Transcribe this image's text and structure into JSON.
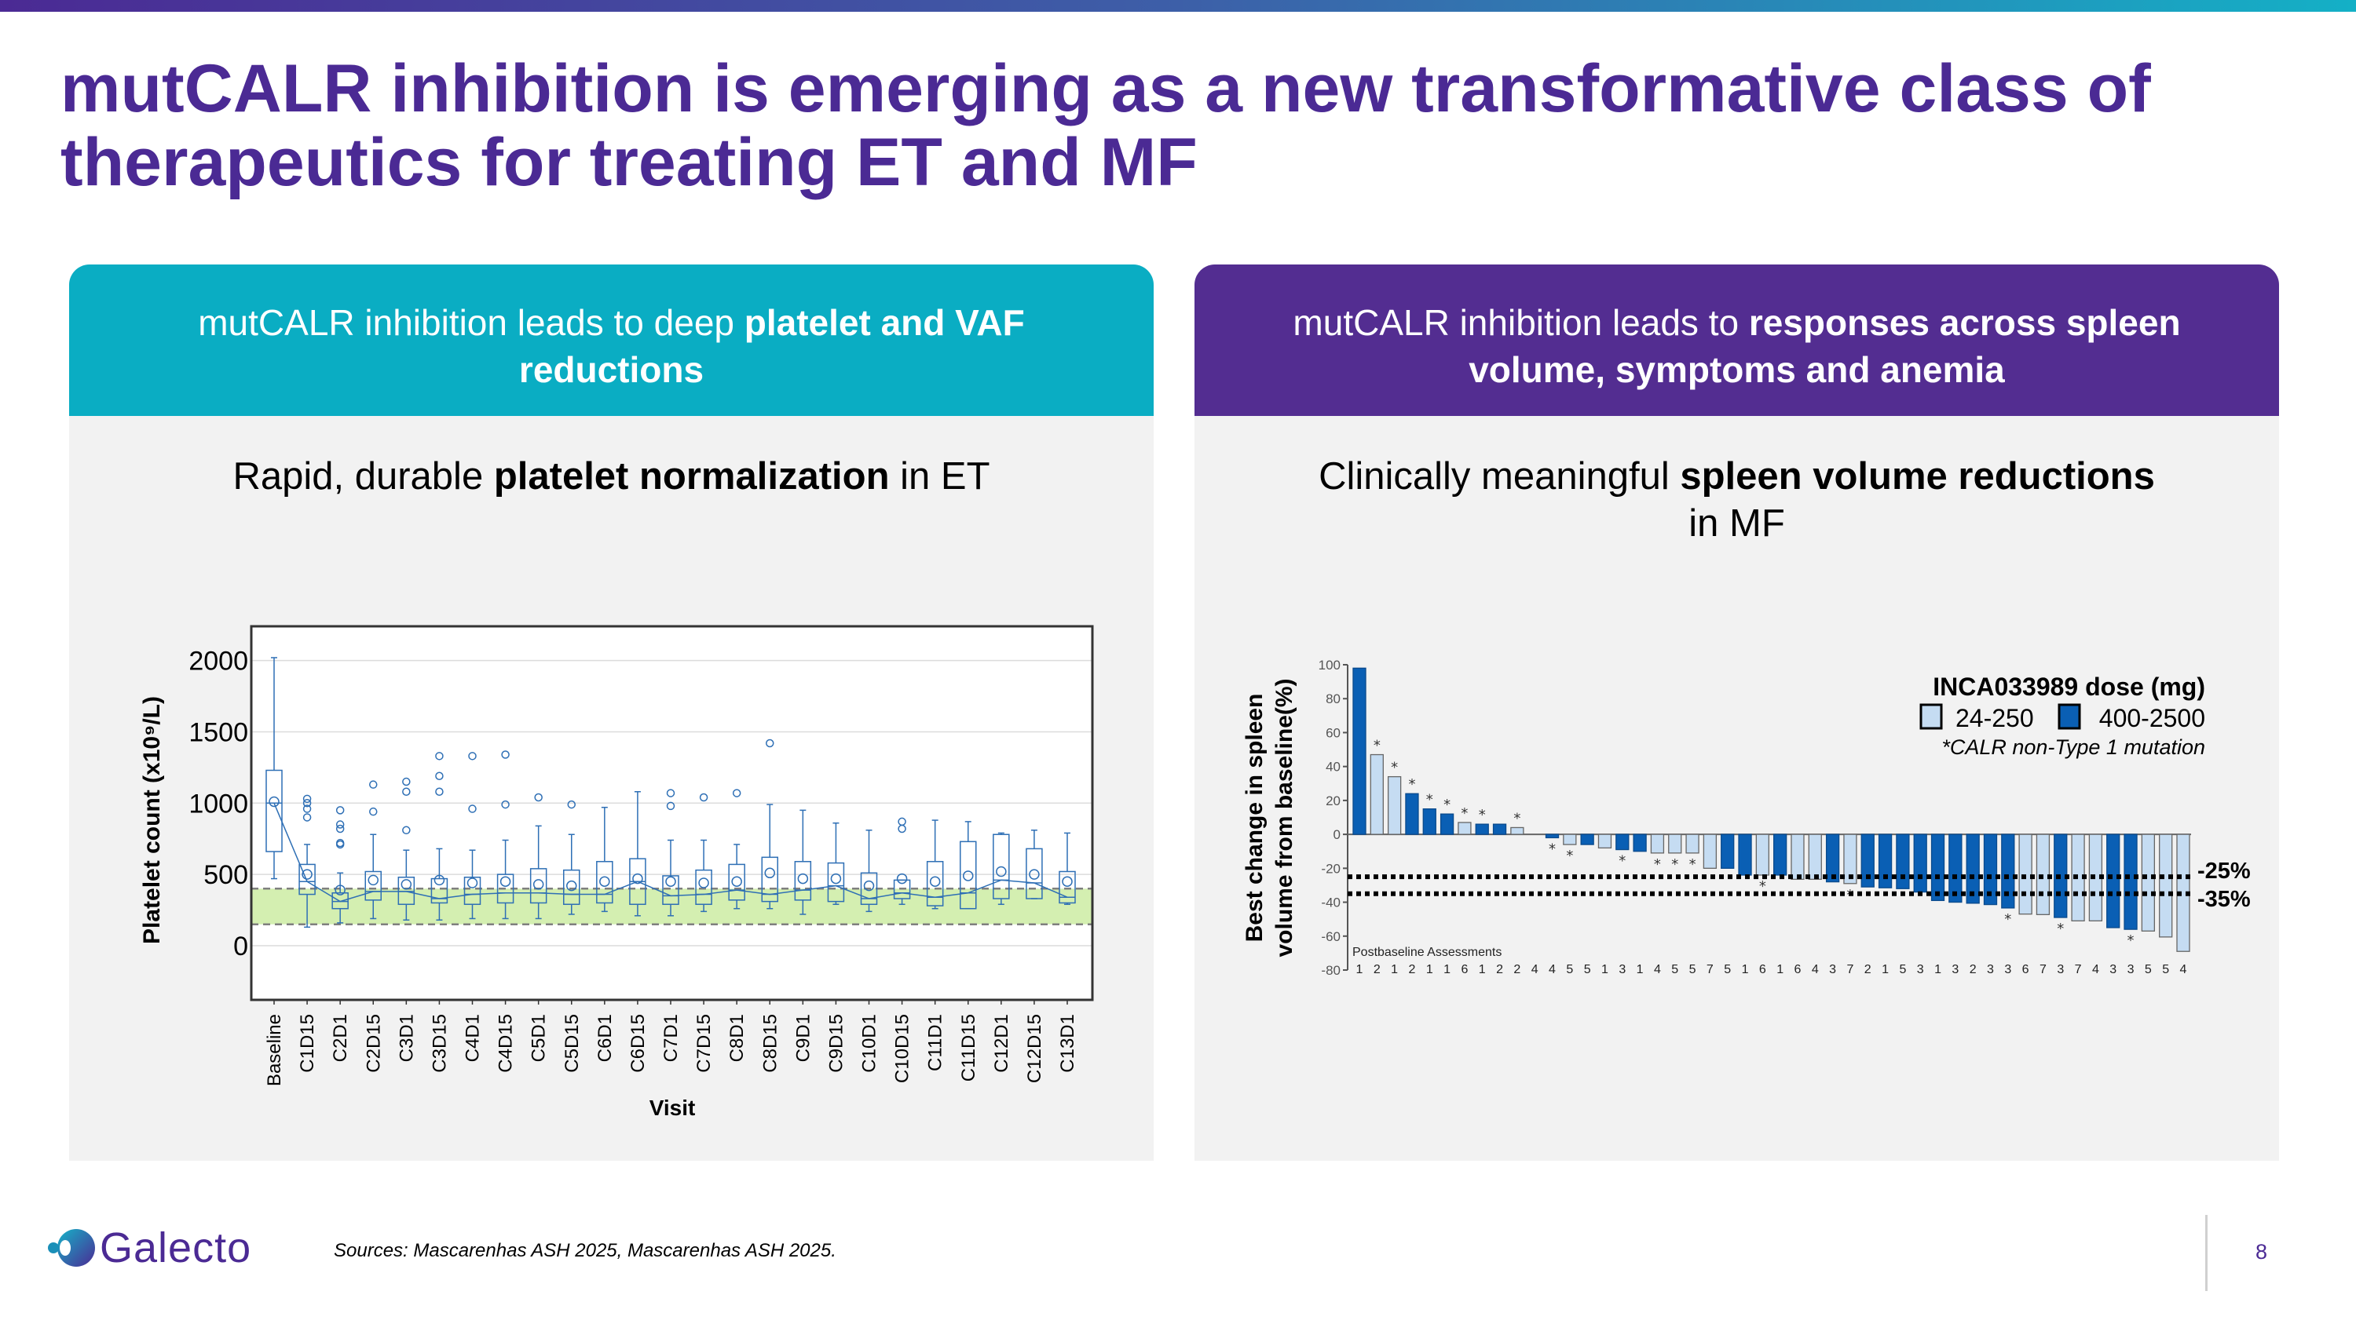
{
  "title": {
    "line1": "mutCALR inhibition is emerging as a new transformative class of",
    "line2": "therapeutics for treating ET and MF"
  },
  "left_panel": {
    "header": {
      "line1_normal": "mutCALR inhibition leads to deep ",
      "line1_bold": "platelet and VAF",
      "line2_bold": "reductions"
    },
    "subtitle": {
      "normal1": "Rapid, durable ",
      "bold": "platelet normalization",
      "normal2": " in ET"
    }
  },
  "right_panel": {
    "header": {
      "line1_normal": "mutCALR inhibition leads to ",
      "line1_bold": "responses across spleen",
      "line2_bold": "volume, symptoms and anemia"
    },
    "subtitle": {
      "normal1": "Clinically meaningful ",
      "bold": "spleen volume reductions",
      "line2": "in MF"
    }
  },
  "colors": {
    "brand_purple": "#4b2a94",
    "left_header": "#0aadc3",
    "right_header": "#532d91",
    "box_blue": "#2e6fb5",
    "normal_range_fill": "#d4efb1",
    "dose_low": "#c5dcf2",
    "dose_high": "#0a5fb4"
  },
  "chart_data": [
    {
      "type": "box",
      "title": "",
      "xlabel": "Visit",
      "ylabel": "Platelet count (x10⁹/L)",
      "ylim": [
        -380,
        2240
      ],
      "yticks": [
        0,
        500,
        1000,
        1500,
        2000
      ],
      "grid": true,
      "reference_band": [
        150,
        400
      ],
      "categories": [
        "Baseline",
        "C1D15",
        "C2D1",
        "C2D15",
        "C3D1",
        "C3D15",
        "C4D1",
        "C4D15",
        "C5D1",
        "C5D15",
        "C6D1",
        "C6D15",
        "C7D1",
        "C7D15",
        "C8D1",
        "C8D15",
        "C9D1",
        "C9D15",
        "C10D1",
        "C10D15",
        "C11D1",
        "C11D15",
        "C12D1",
        "C12D15",
        "C13D1"
      ],
      "boxes": [
        {
          "low": 470,
          "q1": 660,
          "median": 1000,
          "q3": 1230,
          "high": 2020,
          "mean": 1010,
          "outliers": []
        },
        {
          "low": 130,
          "q1": 360,
          "median": 450,
          "q3": 570,
          "high": 710,
          "mean": 500,
          "outliers": [
            1030,
            1000,
            960,
            900
          ]
        },
        {
          "low": 160,
          "q1": 260,
          "median": 310,
          "q3": 370,
          "high": 510,
          "mean": 390,
          "outliers": [
            950,
            850,
            820,
            720,
            710
          ]
        },
        {
          "low": 190,
          "q1": 320,
          "median": 380,
          "q3": 520,
          "high": 780,
          "mean": 460,
          "outliers": [
            1130,
            940
          ]
        },
        {
          "low": 180,
          "q1": 290,
          "median": 380,
          "q3": 480,
          "high": 670,
          "mean": 430,
          "outliers": [
            1150,
            1080,
            810
          ]
        },
        {
          "low": 180,
          "q1": 300,
          "median": 330,
          "q3": 470,
          "high": 680,
          "mean": 460,
          "outliers": [
            1330,
            1190,
            1080
          ]
        },
        {
          "low": 190,
          "q1": 290,
          "median": 360,
          "q3": 480,
          "high": 670,
          "mean": 440,
          "outliers": [
            1330,
            960
          ]
        },
        {
          "low": 190,
          "q1": 300,
          "median": 370,
          "q3": 500,
          "high": 740,
          "mean": 450,
          "outliers": [
            1340,
            990
          ]
        },
        {
          "low": 190,
          "q1": 300,
          "median": 370,
          "q3": 540,
          "high": 840,
          "mean": 430,
          "outliers": [
            1040
          ]
        },
        {
          "low": 220,
          "q1": 290,
          "median": 360,
          "q3": 530,
          "high": 780,
          "mean": 420,
          "outliers": [
            990
          ]
        },
        {
          "low": 240,
          "q1": 300,
          "median": 360,
          "q3": 590,
          "high": 970,
          "mean": 450,
          "outliers": []
        },
        {
          "low": 210,
          "q1": 290,
          "median": 450,
          "q3": 610,
          "high": 1080,
          "mean": 470,
          "outliers": []
        },
        {
          "low": 210,
          "q1": 290,
          "median": 350,
          "q3": 490,
          "high": 740,
          "mean": 450,
          "outliers": [
            1070,
            980
          ]
        },
        {
          "low": 240,
          "q1": 290,
          "median": 360,
          "q3": 530,
          "high": 740,
          "mean": 440,
          "outliers": [
            1040
          ]
        },
        {
          "low": 260,
          "q1": 320,
          "median": 390,
          "q3": 570,
          "high": 710,
          "mean": 450,
          "outliers": [
            1070
          ]
        },
        {
          "low": 260,
          "q1": 310,
          "median": 360,
          "q3": 620,
          "high": 990,
          "mean": 510,
          "outliers": [
            1420
          ]
        },
        {
          "low": 220,
          "q1": 320,
          "median": 390,
          "q3": 590,
          "high": 950,
          "mean": 470,
          "outliers": []
        },
        {
          "low": 290,
          "q1": 310,
          "median": 420,
          "q3": 580,
          "high": 860,
          "mean": 470,
          "outliers": []
        },
        {
          "low": 240,
          "q1": 290,
          "median": 330,
          "q3": 510,
          "high": 810,
          "mean": 420,
          "outliers": []
        },
        {
          "low": 290,
          "q1": 330,
          "median": 370,
          "q3": 460,
          "high": 460,
          "mean": 470,
          "outliers": [
            870,
            820
          ]
        },
        {
          "low": 260,
          "q1": 280,
          "median": 340,
          "q3": 590,
          "high": 880,
          "mean": 450,
          "outliers": []
        },
        {
          "low": 260,
          "q1": 260,
          "median": 370,
          "q3": 730,
          "high": 870,
          "mean": 490,
          "outliers": []
        },
        {
          "low": 290,
          "q1": 330,
          "median": 460,
          "q3": 780,
          "high": 790,
          "mean": 520,
          "outliers": []
        },
        {
          "low": 330,
          "q1": 330,
          "median": 440,
          "q3": 680,
          "high": 810,
          "mean": 500,
          "outliers": []
        },
        {
          "low": 290,
          "q1": 300,
          "median": 340,
          "q3": 520,
          "high": 790,
          "mean": 450,
          "outliers": []
        }
      ]
    },
    {
      "type": "bar",
      "title": "",
      "ylabel_line1": "Best change in spleen",
      "ylabel_line2": "volume from baseline(%)",
      "ylim": [
        -80,
        100
      ],
      "yticks": [
        100,
        80,
        60,
        40,
        20,
        0,
        -20,
        -40,
        -60,
        -80
      ],
      "reference_lines": [
        {
          "value": -25,
          "label": "-25%"
        },
        {
          "value": -35,
          "label": "-35%"
        }
      ],
      "legend": {
        "title": "INCA033989 dose (mg)",
        "items": [
          {
            "name": "24-250",
            "color": "#c5dcf2"
          },
          {
            "name": "400-2500",
            "color": "#0a5fb4"
          }
        ],
        "note": "*CALR non-Type 1 mutation",
        "position": "top-right"
      },
      "row_label": "Postbaseline Assessments",
      "values": [
        98,
        47,
        34,
        24,
        15,
        12,
        7,
        6,
        6,
        4,
        0,
        -2,
        -6,
        -6,
        -8,
        -9,
        -10,
        -11,
        -11,
        -11,
        -20,
        -20,
        -24,
        -24,
        -24,
        -26.5,
        -26.5,
        -28,
        -29,
        -31,
        -31.5,
        -32,
        -34,
        -39,
        -40,
        -40.6,
        -41.4,
        -43.4,
        -47,
        -47.3,
        -49,
        -51,
        -51,
        -55,
        -56,
        -57,
        -60.5,
        -69
      ],
      "dose_group": [
        "high",
        "low",
        "low",
        "high",
        "high",
        "high",
        "low",
        "high",
        "high",
        "low",
        "none",
        "high",
        "low",
        "high",
        "low",
        "high",
        "high",
        "low",
        "low",
        "low",
        "low",
        "high",
        "high",
        "low",
        "high",
        "low",
        "low",
        "high",
        "low",
        "high",
        "high",
        "high",
        "high",
        "high",
        "high",
        "high",
        "high",
        "high",
        "low",
        "low",
        "high",
        "low",
        "low",
        "high",
        "high",
        "low",
        "low",
        "low"
      ],
      "non_type1_star": [
        false,
        true,
        true,
        true,
        true,
        true,
        true,
        true,
        false,
        true,
        false,
        true,
        true,
        false,
        false,
        true,
        false,
        true,
        true,
        true,
        false,
        false,
        false,
        true,
        false,
        false,
        false,
        false,
        true,
        false,
        false,
        false,
        false,
        false,
        false,
        false,
        false,
        true,
        false,
        false,
        true,
        false,
        false,
        false,
        true,
        false,
        false,
        false
      ],
      "postbaseline_assessments": [
        1,
        2,
        1,
        2,
        1,
        1,
        6,
        1,
        2,
        2,
        4,
        4,
        5,
        5,
        1,
        3,
        1,
        4,
        5,
        5,
        7,
        5,
        1,
        6,
        1,
        6,
        4,
        3,
        7,
        2,
        1,
        5,
        3,
        1,
        3,
        2,
        3,
        3,
        6,
        7,
        3,
        7,
        4,
        3,
        3,
        5,
        5,
        4
      ]
    }
  ],
  "footer": {
    "logo_text": "Galecto",
    "sources": "Sources: Mascarenhas ASH 2025, Mascarenhas ASH 2025.",
    "page_number": "8"
  }
}
